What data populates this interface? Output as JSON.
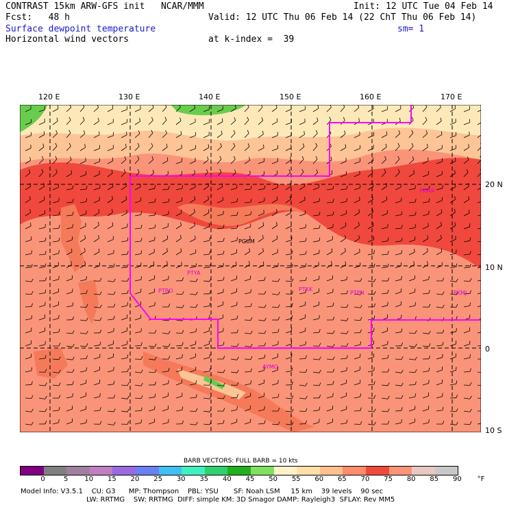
{
  "header": {
    "model": "CONTRAST 15km ARW-GFS init   NCAR/MMM",
    "fcst": "Fcst:   48 h",
    "field1": "Surface dewpoint temperature",
    "field2": "Horizontal wind vectors",
    "init": "Init: 12 UTC Tue 04 Feb 14",
    "valid": "Valid: 12 UTC Thu 06 Feb 14 (22 ChT Thu 06 Feb 14)",
    "sm": "sm= 1",
    "kindex": "at k-index =  39"
  },
  "map": {
    "lon_labels": [
      "120 E",
      "130 E",
      "140 E",
      "150 E",
      "160 E",
      "170 E"
    ],
    "lat_labels": [
      "20 N",
      "10 N",
      "0",
      "10 S"
    ],
    "stations": [
      "PGUM",
      "PTYA",
      "PTRO",
      "PTKK",
      "PTPN",
      "PKMJ",
      "PKWA",
      "AYMO"
    ],
    "colors": {
      "boundary": "#ff00ff",
      "dew_75_80": "#f0483c",
      "dew_70_75": "#f57a5a",
      "dew_65_70": "#fa9c78",
      "dew_60_65": "#fdc496",
      "dew_55_60": "#fde8b8",
      "green": "#6acc4e"
    }
  },
  "legend": {
    "title": "BARB VECTORS:  FULL BARB = 10 kts",
    "labels": [
      "0",
      "5",
      "10",
      "15",
      "20",
      "25",
      "30",
      "35",
      "40",
      "45",
      "50",
      "55",
      "60",
      "65",
      "70",
      "75",
      "80",
      "85",
      "90"
    ],
    "unit": "°F",
    "colors": [
      "#800080",
      "#808080",
      "#a080a0",
      "#c080c0",
      "#9a6ae0",
      "#6a80f0",
      "#40c0f0",
      "#40f0c0",
      "#30d070",
      "#20b020",
      "#80e060",
      "#fff2c8",
      "#ffe0a8",
      "#ffc090",
      "#ff8c6a",
      "#f04a3c",
      "#fa9478",
      "#e8c8c0",
      "#c8c8c8"
    ]
  },
  "footer": {
    "line1": "Model Info: V3.5.1    CU: G3      MP: Thompson    PBL: YSU       SF: Noah LSM     15 km    39 levels    90 sec",
    "line2": "LW: RRTMG    SW: RRTMG  DIFF: simple KM: 3D Smagor DAMP: Rayleigh3  SFLAY: Rev MM5"
  }
}
